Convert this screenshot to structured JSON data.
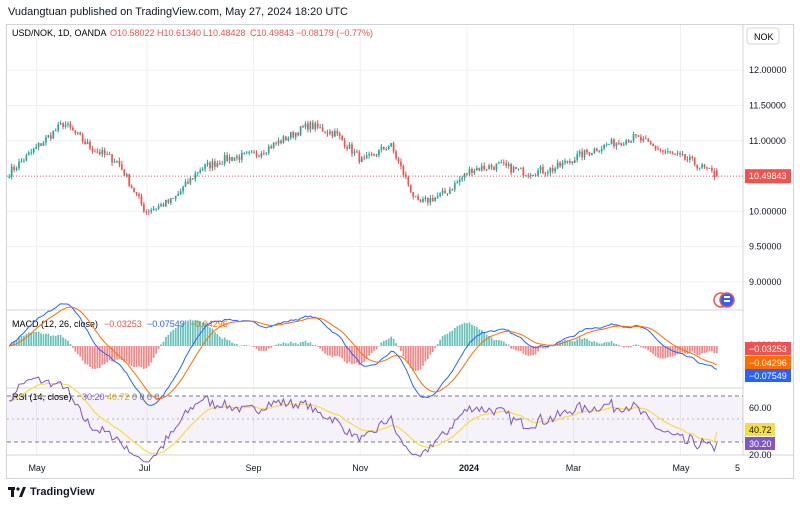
{
  "header": {
    "publisher": "Vudangtuan published on TradingView.com, May 27, 2024 18:20 UTC"
  },
  "legend": {
    "symbol": "USD/NOK, 1D, OANDA",
    "open": "O10.58022",
    "high": "H10.61340",
    "low": "L10.48428",
    "close": "C10.49843",
    "change": "−0.08179 (−0.77%)"
  },
  "currency_button": "NOK",
  "price_axis": {
    "ticks": [
      "12.00000",
      "11.50000",
      "11.00000",
      "10.49843",
      "10.00000",
      "9.50000",
      "9.00000"
    ],
    "last_price": "10.49843"
  },
  "macd": {
    "title": "MACD (12, 26, close)",
    "v1": "−0.03253",
    "v2": "−0.07549",
    "v3": "−0.04296",
    "axis_labels": {
      "level": "0.00000",
      "a": "−0.03253",
      "b": "−0.04296",
      "c": "−0.07549"
    }
  },
  "rsi": {
    "title": "RSI (14, close)",
    "v1": "30.20",
    "v2": "40.72",
    "extra": "0 0 0 0",
    "axis_labels": {
      "top": "60.00",
      "ma": "40.72",
      "val": "30.20",
      "bottom": "20.00"
    }
  },
  "time_axis": [
    "May",
    "Jul",
    "Sep",
    "Nov",
    "2024",
    "Mar",
    "May",
    "5"
  ],
  "footer": {
    "brand": "TradingView"
  },
  "colors": {
    "up": "#26a69a",
    "down": "#ef5350",
    "macd": "#2962ff",
    "signal": "#ff6d00",
    "rsi": "#7e57c2",
    "rsi_ma": "#f7dc4a",
    "grid": "#eef0f4"
  },
  "chart_data": [
    {
      "type": "candlestick",
      "title": "USD/NOK, 1D, OANDA",
      "ylim": [
        8.8,
        12.4
      ],
      "x": [
        "2023-04",
        "2023-05",
        "2023-06",
        "2023-07",
        "2023-08",
        "2023-09",
        "2023-10",
        "2023-11",
        "2023-12",
        "2024-01",
        "2024-02",
        "2024-03",
        "2024-04",
        "2024-05"
      ],
      "close_path": [
        10.55,
        10.9,
        11.25,
        10.9,
        10.7,
        10.0,
        10.15,
        10.6,
        10.75,
        10.8,
        11.0,
        11.22,
        11.1,
        10.7,
        10.95,
        10.1,
        10.25,
        10.6,
        10.65,
        10.55,
        10.6,
        10.8,
        10.95,
        11.05,
        10.85,
        10.72,
        10.49843
      ],
      "last": {
        "open": 10.58022,
        "high": 10.6134,
        "low": 10.48428,
        "close": 10.49843
      }
    },
    {
      "type": "line",
      "title": "MACD (12, 26, close)",
      "series": [
        {
          "name": "MACD",
          "last": -0.07549
        },
        {
          "name": "Signal",
          "last": -0.04296
        },
        {
          "name": "Histogram",
          "last": -0.03253
        }
      ]
    },
    {
      "type": "line",
      "title": "RSI (14, close)",
      "ylim": [
        20,
        80
      ],
      "series": [
        {
          "name": "RSI",
          "last": 30.2
        },
        {
          "name": "RSI MA",
          "last": 40.72
        }
      ]
    }
  ]
}
